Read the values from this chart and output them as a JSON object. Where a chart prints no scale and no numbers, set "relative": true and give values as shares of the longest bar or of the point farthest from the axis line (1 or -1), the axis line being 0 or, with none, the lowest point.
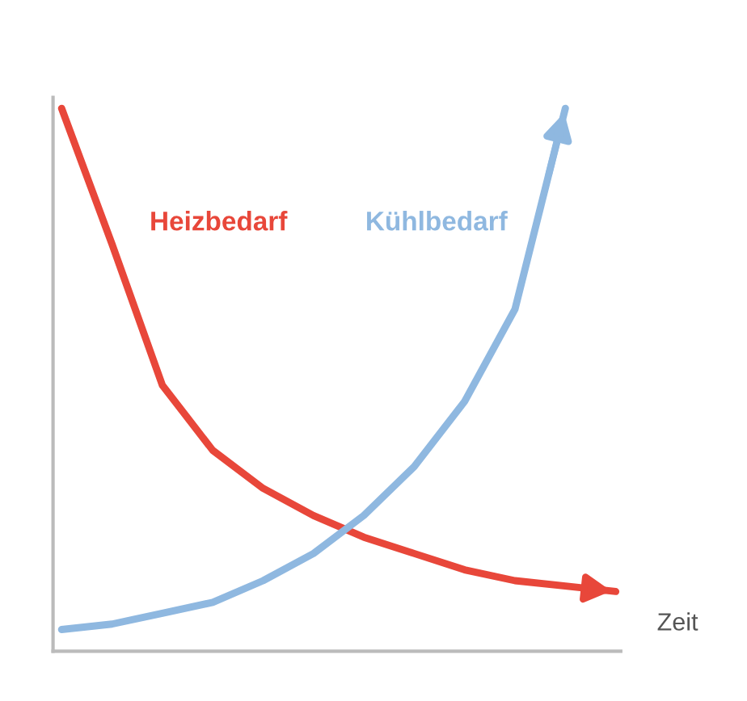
{
  "chart_data": {
    "type": "line",
    "relative": true,
    "xlabel": "Zeit",
    "grid": false,
    "legend": false,
    "categories": [
      null,
      null,
      null,
      null,
      null,
      null,
      null,
      null,
      null,
      null,
      null,
      null
    ],
    "series": [
      {
        "name": "Heizbedarf",
        "color": "#e8473a",
        "values": [
          1.0,
          0.75,
          0.49,
          0.37,
          0.3,
          0.25,
          0.21,
          0.18,
          0.15,
          0.13,
          0.12,
          0.11
        ]
      },
      {
        "name": "Kühlbedarf",
        "color": "#8fb8e0",
        "values": [
          0.04,
          0.05,
          0.07,
          0.09,
          0.13,
          0.18,
          0.25,
          0.34,
          0.46,
          0.63,
          1.0,
          null
        ]
      }
    ]
  }
}
